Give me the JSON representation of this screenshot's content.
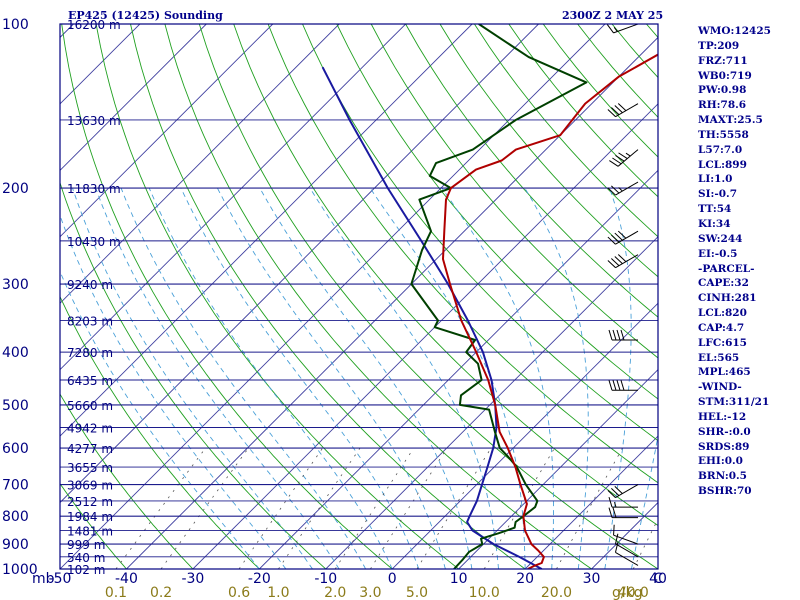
{
  "header": {
    "title_left": "EP425 (12425) Sounding",
    "title_right": "2300Z  2 MAY 25"
  },
  "indices": [
    "WMO:12425",
    "TP:209",
    "FRZ:711",
    "WB0:719",
    "PW:0.98",
    "RH:78.6",
    "MAXT:25.5",
    "TH:5558",
    "L57:7.0",
    "LCL:899",
    "LI:1.0",
    "SI:-0.7",
    "TT:54",
    "KI:34",
    "SW:244",
    "EI:-0.5",
    "-PARCEL-",
    "CAPE:32",
    "CINH:281",
    "LCL:820",
    "CAP:4.7",
    "LFC:615",
    "EL:565",
    "MPL:465",
    "-WIND-",
    "STM:311/21",
    "HEL:-12",
    "SHR-:0.0",
    "SRDS:89",
    "EHI:0.0",
    "BRN:0.5",
    "BSHR:70"
  ],
  "colors": {
    "isobar": "#1c1c8c",
    "isotherm": "#4040a0",
    "dry_adiabat": "#20a020",
    "moist_adiabat": "#4aa0d8",
    "mixing_ratio": "#555555",
    "temperature": "#b00000",
    "dewpoint": "#004000",
    "parcel": "#1a1aa0",
    "frame": "#000080",
    "mixing_label": "#8b7b1a",
    "wind_barb": "#000000"
  },
  "chart_data": {
    "type": "skew-t log-p sounding",
    "pressure_range_hpa": [
      1000,
      100
    ],
    "temperature_range_c": [
      -50,
      40
    ],
    "pressure_ticks": [
      100,
      200,
      300,
      400,
      500,
      600,
      700,
      800,
      900,
      1000
    ],
    "pressure_axis_label": "mb",
    "temperature_ticks": [
      -50,
      -40,
      -30,
      -20,
      -10,
      0,
      10,
      20,
      30,
      40
    ],
    "temperature_axis_label": "C",
    "mixing_ratio_ticks": [
      "0.1",
      "0.2",
      "0.6",
      "1.0",
      "2.0",
      "3.0",
      "5.0",
      "10.0",
      "20.0",
      "40.0"
    ],
    "mixing_ratio_axis_label": "g/kg",
    "height_labels": [
      {
        "p": 100,
        "label": "16200 m"
      },
      {
        "p": 150,
        "label": "13630 m"
      },
      {
        "p": 200,
        "label": "11830 m"
      },
      {
        "p": 250,
        "label": "10430 m"
      },
      {
        "p": 300,
        "label": "9240 m"
      },
      {
        "p": 350,
        "label": "8203 m"
      },
      {
        "p": 400,
        "label": "7280 m"
      },
      {
        "p": 450,
        "label": "6435 m"
      },
      {
        "p": 500,
        "label": "5660 m"
      },
      {
        "p": 550,
        "label": "4942 m"
      },
      {
        "p": 600,
        "label": "4277 m"
      },
      {
        "p": 650,
        "label": "3655 m"
      },
      {
        "p": 700,
        "label": "3069 m"
      },
      {
        "p": 750,
        "label": "2512 m"
      },
      {
        "p": 800,
        "label": "1984 m"
      },
      {
        "p": 850,
        "label": "1481 m"
      },
      {
        "p": 900,
        "label": "999 m"
      },
      {
        "p": 950,
        "label": "540 m"
      },
      {
        "p": 1000,
        "label": "102 m"
      }
    ],
    "temperature_profile": [
      [
        1000,
        20.4
      ],
      [
        985,
        21
      ],
      [
        975,
        21.6
      ],
      [
        950,
        21.0
      ],
      [
        925,
        19.2
      ],
      [
        900,
        17.2
      ],
      [
        850,
        14.2
      ],
      [
        800,
        11.8
      ],
      [
        760,
        10.5
      ],
      [
        700,
        6.6
      ],
      [
        650,
        3.2
      ],
      [
        600,
        -0.8
      ],
      [
        560,
        -4.5
      ],
      [
        500,
        -9.2
      ],
      [
        450,
        -14.0
      ],
      [
        400,
        -20.0
      ],
      [
        350,
        -27.0
      ],
      [
        300,
        -34.2
      ],
      [
        270,
        -39.0
      ],
      [
        240,
        -43.0
      ],
      [
        210,
        -47.5
      ],
      [
        200,
        -48.5
      ],
      [
        185,
        -47.5
      ],
      [
        178,
        -45.0
      ],
      [
        170,
        -44.5
      ],
      [
        160,
        -40.0
      ],
      [
        140,
        -41.0
      ],
      [
        125,
        -40.0
      ],
      [
        110,
        -36.5
      ],
      [
        100,
        -33.0
      ]
    ],
    "dewpoint_profile": [
      [
        1000,
        9.3
      ],
      [
        960,
        9.2
      ],
      [
        930,
        9.0
      ],
      [
        900,
        9.8
      ],
      [
        880,
        8.8
      ],
      [
        860,
        10.6
      ],
      [
        840,
        12.2
      ],
      [
        820,
        11.5
      ],
      [
        800,
        11.8
      ],
      [
        770,
        12.2
      ],
      [
        750,
        11.6
      ],
      [
        700,
        7.4
      ],
      [
        650,
        3.4
      ],
      [
        620,
        0.3
      ],
      [
        600,
        -2.0
      ],
      [
        560,
        -5.2
      ],
      [
        510,
        -9.4
      ],
      [
        500,
        -14.5
      ],
      [
        480,
        -15.8
      ],
      [
        450,
        -15.0
      ],
      [
        420,
        -18.0
      ],
      [
        400,
        -21.5
      ],
      [
        380,
        -22.0
      ],
      [
        360,
        -30.0
      ],
      [
        350,
        -30.5
      ],
      [
        300,
        -40.0
      ],
      [
        260,
        -43.5
      ],
      [
        240,
        -45.0
      ],
      [
        210,
        -51.5
      ],
      [
        200,
        -48.5
      ],
      [
        190,
        -53.5
      ],
      [
        180,
        -54.5
      ],
      [
        170,
        -51.0
      ],
      [
        150,
        -49.0
      ],
      [
        128,
        -44.0
      ],
      [
        115,
        -56.5
      ],
      [
        100,
        -69.0
      ]
    ],
    "parcel_profile": [
      [
        1000,
        22.5
      ],
      [
        950,
        17.3
      ],
      [
        900,
        11.5
      ],
      [
        850,
        6.3
      ],
      [
        820,
        4.2
      ],
      [
        800,
        3.7
      ],
      [
        750,
        2.5
      ],
      [
        700,
        0.8
      ],
      [
        650,
        -1.0
      ],
      [
        600,
        -3.0
      ],
      [
        550,
        -5.6
      ],
      [
        500,
        -9.2
      ],
      [
        450,
        -13.5
      ],
      [
        400,
        -19.0
      ],
      [
        350,
        -26.0
      ],
      [
        300,
        -34.5
      ],
      [
        250,
        -45.0
      ],
      [
        200,
        -58.0
      ],
      [
        150,
        -74.0
      ],
      [
        120,
        -86.0
      ]
    ],
    "wind_barbs": [
      {
        "p": 985,
        "dir": 300,
        "spd": 10
      },
      {
        "p": 950,
        "dir": 300,
        "spd": 10
      },
      {
        "p": 900,
        "dir": 290,
        "spd": 10
      },
      {
        "p": 805,
        "dir": 270,
        "spd": 20
      },
      {
        "p": 770,
        "dir": 270,
        "spd": 15
      },
      {
        "p": 700,
        "dir": 240,
        "spd": 30
      },
      {
        "p": 470,
        "dir": 270,
        "spd": 40
      },
      {
        "p": 380,
        "dir": 270,
        "spd": 40
      },
      {
        "p": 265,
        "dir": 240,
        "spd": 40
      },
      {
        "p": 240,
        "dir": 240,
        "spd": 40
      },
      {
        "p": 195,
        "dir": 240,
        "spd": 25
      },
      {
        "p": 170,
        "dir": 230,
        "spd": 45
      },
      {
        "p": 140,
        "dir": 240,
        "spd": 40
      },
      {
        "p": 100,
        "dir": 250,
        "spd": 15
      }
    ]
  }
}
